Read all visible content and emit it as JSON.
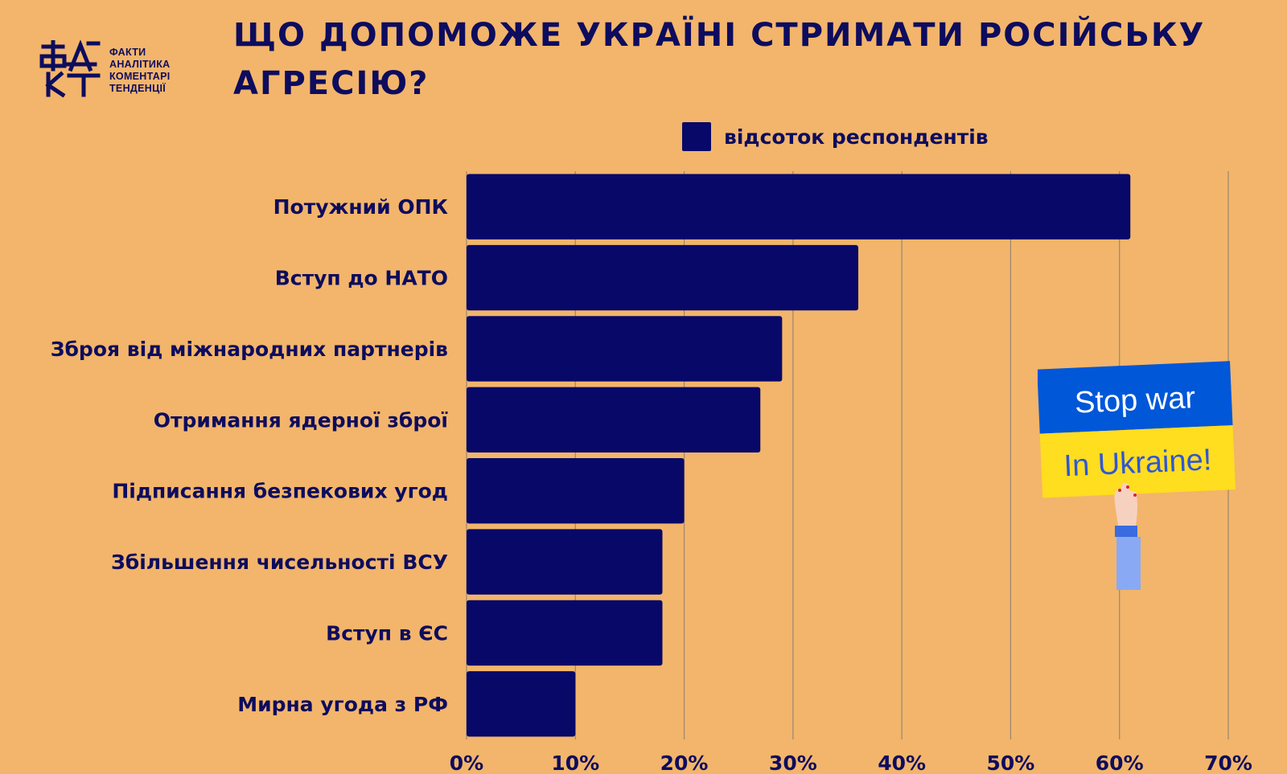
{
  "logo": {
    "lines": [
      "ФАКТИ",
      "АНАЛІТИКА",
      "КОМЕНТАРІ",
      "ТЕНДЕНЦІЇ"
    ]
  },
  "title": "ЩО ДОПОМОЖЕ УКРАЇНІ СТРИМАТИ РОСІЙСЬКУ АГРЕСІЮ?",
  "legend": {
    "label": "відсоток респондентів",
    "color": "#080868"
  },
  "colors": {
    "background": "#F2B56B",
    "bar": "#080868",
    "text": "#0D0C5E",
    "grid": "#9C8770"
  },
  "sign": {
    "line1": "Stop war",
    "line2": "In Ukraine!",
    "top_color": "#0057D8",
    "bottom_color": "#FFDD1F"
  },
  "chart_data": {
    "type": "bar",
    "orientation": "horizontal",
    "categories": [
      "Потужний ОПК",
      "Вступ до НАТО",
      "Зброя від міжнародних партнерів",
      "Отримання ядерної зброї",
      "Підписання безпекових угод",
      "Збільшення чисельності ВСУ",
      "Вступ в ЄС",
      "Мирна угода з РФ"
    ],
    "series": [
      {
        "name": "відсоток респондентів",
        "values": [
          61,
          36,
          29,
          27,
          20,
          18,
          18,
          10
        ]
      }
    ],
    "xlim": [
      0,
      70
    ],
    "xticks": [
      "0%",
      "10%",
      "20%",
      "30%",
      "40%",
      "50%",
      "60%",
      "70%"
    ],
    "grid": true,
    "legend": "top-center"
  }
}
